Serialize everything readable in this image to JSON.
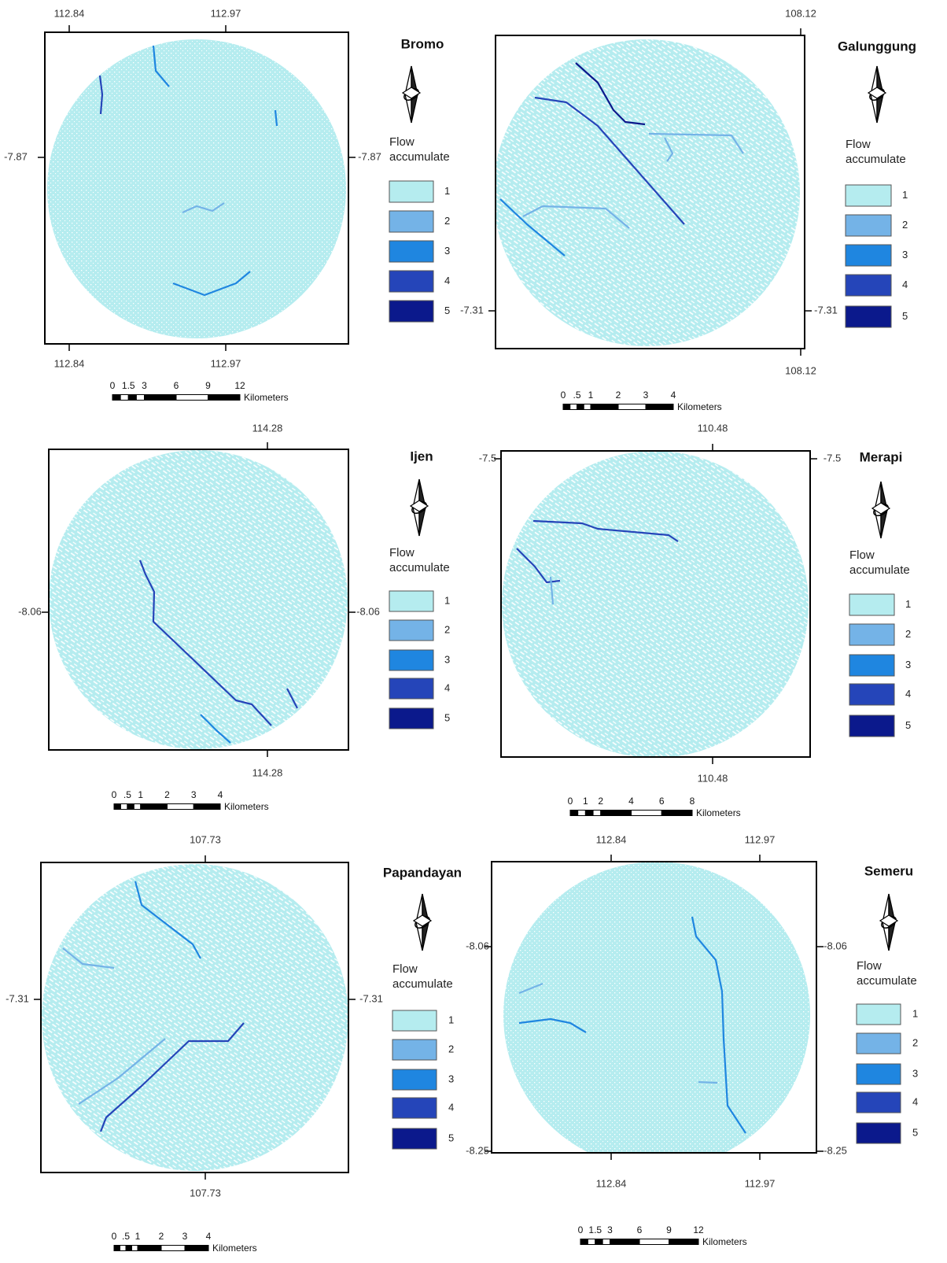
{
  "panels": [
    {
      "title": "Bromo",
      "top_labels": [
        "112.84",
        "112.97"
      ],
      "bottom_labels": [
        "112.84",
        "112.97"
      ],
      "left_labels": [
        "-7.87"
      ],
      "right_labels": [
        "-7.87"
      ],
      "legend": {
        "title": "Flow accumulate",
        "classes": [
          {
            "label": "1",
            "color": "#b5ecef"
          },
          {
            "label": "2",
            "color": "#74b3e7"
          },
          {
            "label": "3",
            "color": "#1f86e0"
          },
          {
            "label": "4",
            "color": "#2545b9"
          },
          {
            "label": "5",
            "color": "#0b198c"
          }
        ]
      },
      "scale": {
        "labels": [
          "0",
          "1.5",
          "3",
          "6",
          "9",
          "12"
        ],
        "unit": "Kilometers"
      }
    },
    {
      "title": "Galunggung",
      "top_labels": [
        "108.12"
      ],
      "bottom_labels": [
        "108.12"
      ],
      "left_labels": [
        "-7.31"
      ],
      "right_labels": [
        "-7.31"
      ],
      "legend": {
        "title": "Flow accumulate",
        "classes": [
          {
            "label": "1",
            "color": "#b5ecef"
          },
          {
            "label": "2",
            "color": "#74b3e7"
          },
          {
            "label": "3",
            "color": "#1f86e0"
          },
          {
            "label": "4",
            "color": "#2545b9"
          },
          {
            "label": "5",
            "color": "#0b198c"
          }
        ]
      },
      "scale": {
        "labels": [
          "0",
          ".5",
          "1",
          "2",
          "3",
          "4"
        ],
        "unit": "Kilometers"
      }
    },
    {
      "title": "Ijen",
      "top_labels": [
        "114.28"
      ],
      "bottom_labels": [
        "114.28"
      ],
      "left_labels": [
        "-8.06"
      ],
      "right_labels": [
        "-8.06"
      ],
      "legend": {
        "title": "Flow accumulate",
        "classes": [
          {
            "label": "1",
            "color": "#b5ecef"
          },
          {
            "label": "2",
            "color": "#74b3e7"
          },
          {
            "label": "3",
            "color": "#1f86e0"
          },
          {
            "label": "4",
            "color": "#2545b9"
          },
          {
            "label": "5",
            "color": "#0b198c"
          }
        ]
      },
      "scale": {
        "labels": [
          "0",
          ".5",
          "1",
          "2",
          "3",
          "4"
        ],
        "unit": "Kilometers"
      }
    },
    {
      "title": "Merapi",
      "top_labels": [
        "110.48"
      ],
      "bottom_labels": [
        "110.48"
      ],
      "left_labels": [
        "-7.5"
      ],
      "right_labels": [
        "-7.5"
      ],
      "legend": {
        "title": "Flow accumulate",
        "classes": [
          {
            "label": "1",
            "color": "#b5ecef"
          },
          {
            "label": "2",
            "color": "#74b3e7"
          },
          {
            "label": "3",
            "color": "#1f86e0"
          },
          {
            "label": "4",
            "color": "#2545b9"
          },
          {
            "label": "5",
            "color": "#0b198c"
          }
        ]
      },
      "scale": {
        "labels": [
          "0",
          "1",
          "2",
          "4",
          "6",
          "8"
        ],
        "unit": "Kilometers"
      }
    },
    {
      "title": "Papandayan",
      "top_labels": [
        "107.73"
      ],
      "bottom_labels": [
        "107.73"
      ],
      "left_labels": [
        "-7.31"
      ],
      "right_labels": [
        "-7.31"
      ],
      "legend": {
        "title": "Flow accumulate",
        "classes": [
          {
            "label": "1",
            "color": "#b5ecef"
          },
          {
            "label": "2",
            "color": "#74b3e7"
          },
          {
            "label": "3",
            "color": "#1f86e0"
          },
          {
            "label": "4",
            "color": "#2545b9"
          },
          {
            "label": "5",
            "color": "#0b198c"
          }
        ]
      },
      "scale": {
        "labels": [
          "0",
          ".5",
          "1",
          "2",
          "3",
          "4"
        ],
        "unit": "Kilometers"
      }
    },
    {
      "title": "Semeru",
      "top_labels": [
        "112.84",
        "112.97"
      ],
      "bottom_labels": [
        "112.84",
        "112.97"
      ],
      "left_labels": [
        "-8.06",
        "-8.25"
      ],
      "right_labels": [
        "-8.06",
        "-8.25"
      ],
      "legend": {
        "title": "Flow accumulate",
        "classes": [
          {
            "label": "1",
            "color": "#b5ecef"
          },
          {
            "label": "2",
            "color": "#74b3e7"
          },
          {
            "label": "3",
            "color": "#1f86e0"
          },
          {
            "label": "4",
            "color": "#2545b9"
          },
          {
            "label": "5",
            "color": "#0b198c"
          }
        ]
      },
      "scale": {
        "labels": [
          "0",
          "1.5",
          "3",
          "6",
          "9",
          "12"
        ],
        "unit": "Kilometers"
      }
    }
  ]
}
